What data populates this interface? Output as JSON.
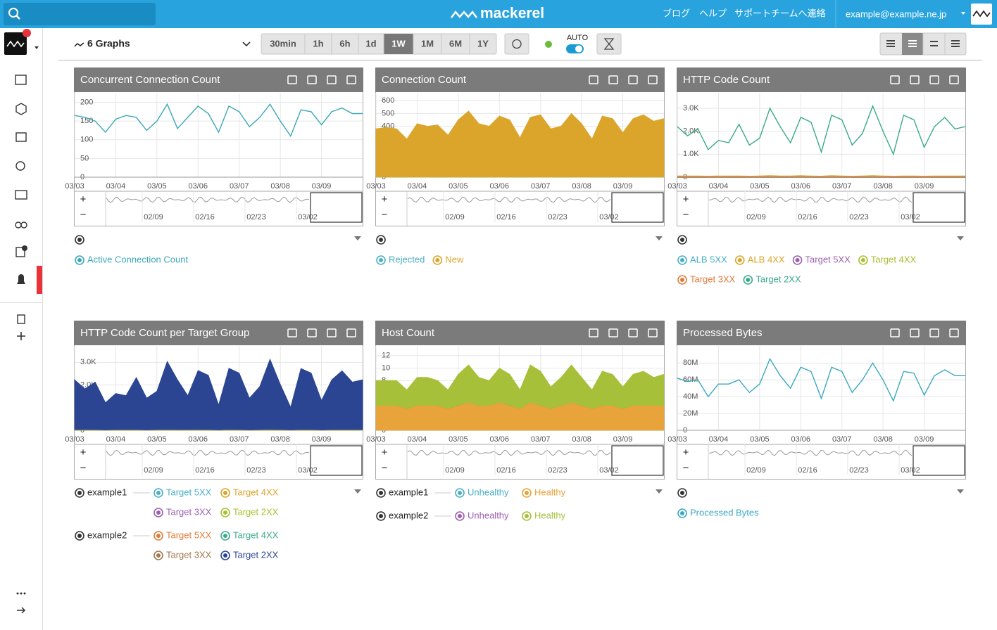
{
  "header": {
    "logo": "mackerel",
    "nav": [
      "ブログ",
      "ヘルプ",
      "サポートチームへ連絡"
    ],
    "user": "example@example.ne.jp"
  },
  "toolbar": {
    "title": "6 Graphs",
    "ranges": [
      {
        "label": "30min"
      },
      {
        "label": "1h"
      },
      {
        "label": "6h"
      },
      {
        "label": "1d"
      },
      {
        "label": "1W",
        "active": true
      },
      {
        "label": "1M"
      },
      {
        "label": "6M"
      },
      {
        "label": "1Y"
      }
    ],
    "auto": "AUTO"
  },
  "overview": {
    "zoom": [
      "+",
      "−"
    ],
    "ticks": [
      "02/09",
      "02/16",
      "02/23",
      "03/02"
    ]
  },
  "chart_data": [
    {
      "type": "line",
      "title": "Concurrent Connection Count",
      "ylim": [
        0,
        218
      ],
      "yticks": [
        0,
        50,
        100,
        150,
        200
      ],
      "grid": true,
      "xticks": [
        "03/03",
        "03/04",
        "03/05",
        "03/06",
        "03/07",
        "03/08",
        "03/09"
      ],
      "series": [
        {
          "name": "Active Connection Count",
          "color": "#3aa8b8",
          "values": [
            165,
            160,
            150,
            120,
            155,
            165,
            160,
            125,
            150,
            195,
            130,
            160,
            190,
            170,
            120,
            190,
            175,
            135,
            160,
            195,
            150,
            110,
            180,
            175,
            140,
            175,
            185,
            170,
            170
          ]
        }
      ]
    },
    {
      "type": "area",
      "stacked": true,
      "title": "Connection Count",
      "ylim": [
        0,
        640
      ],
      "yticks": [
        0,
        100,
        200,
        300,
        400,
        500,
        600
      ],
      "grid": true,
      "xticks": [
        "03/03",
        "03/04",
        "03/05",
        "03/06",
        "03/07",
        "03/08",
        "03/09"
      ],
      "series": [
        {
          "name": "Rejected",
          "color": "#4aaec6",
          "values": [
            0,
            0,
            0,
            0,
            0,
            0,
            0,
            0,
            0,
            0,
            0,
            0,
            0,
            0,
            0,
            0,
            0,
            0,
            0,
            0,
            0,
            0,
            0,
            0,
            0,
            0,
            0,
            0,
            0
          ]
        },
        {
          "name": "New",
          "color": "#dba52b",
          "values": [
            380,
            390,
            380,
            300,
            420,
            400,
            410,
            330,
            450,
            520,
            420,
            400,
            480,
            450,
            310,
            470,
            490,
            380,
            400,
            500,
            420,
            300,
            480,
            460,
            350,
            460,
            490,
            440,
            460
          ]
        }
      ]
    },
    {
      "type": "line",
      "title": "HTTP Code Count",
      "ylim": [
        0,
        3550
      ],
      "yticks": [
        0,
        {
          "value": 1000,
          "label": "1.0K"
        },
        {
          "value": 2000,
          "label": "2.0K"
        },
        {
          "value": 3000,
          "label": "3.0K"
        }
      ],
      "grid": true,
      "xticks": [
        "03/03",
        "03/04",
        "03/05",
        "03/06",
        "03/07",
        "03/08",
        "03/09"
      ],
      "series": [
        {
          "name": "ALB 5XX",
          "color": "#4aaec6",
          "values": [
            0,
            0,
            0,
            0,
            0,
            0,
            0,
            0,
            0,
            0,
            0,
            0,
            0,
            0,
            0,
            0,
            0,
            0,
            0,
            0,
            0,
            0,
            0,
            0,
            0,
            0,
            0,
            0,
            0
          ]
        },
        {
          "name": "ALB 4XX",
          "color": "#dba52b",
          "values": [
            50,
            50,
            50,
            40,
            50,
            50,
            50,
            40,
            50,
            60,
            50,
            50,
            60,
            50,
            40,
            60,
            50,
            40,
            50,
            60,
            50,
            40,
            50,
            50,
            40,
            50,
            50,
            50,
            50
          ]
        },
        {
          "name": "Target 5XX",
          "color": "#9b5fb0",
          "values": [
            0,
            0,
            0,
            0,
            0,
            0,
            0,
            0,
            0,
            0,
            0,
            0,
            0,
            0,
            0,
            0,
            0,
            0,
            0,
            0,
            0,
            0,
            0,
            0,
            0,
            0,
            0,
            0,
            0
          ]
        },
        {
          "name": "Target 4XX",
          "color": "#a8c030",
          "values": [
            30,
            30,
            30,
            20,
            30,
            30,
            30,
            20,
            30,
            40,
            30,
            30,
            40,
            30,
            20,
            40,
            30,
            20,
            30,
            40,
            30,
            20,
            30,
            30,
            20,
            30,
            30,
            30,
            30
          ]
        },
        {
          "name": "Target 3XX",
          "color": "#e07b3a",
          "values": [
            10,
            10,
            10,
            10,
            10,
            10,
            10,
            10,
            10,
            10,
            10,
            10,
            10,
            10,
            10,
            10,
            10,
            10,
            10,
            10,
            10,
            10,
            10,
            10,
            10,
            10,
            10,
            10,
            10
          ]
        },
        {
          "name": "Target 2XX",
          "color": "#3aaa8a",
          "values": [
            2200,
            1800,
            2100,
            1200,
            1600,
            1500,
            2300,
            1400,
            1700,
            3000,
            2200,
            1500,
            2600,
            2400,
            1100,
            2700,
            2500,
            1400,
            1900,
            3100,
            2000,
            1000,
            2700,
            2500,
            1300,
            2200,
            2600,
            2100,
            2200
          ]
        }
      ]
    },
    {
      "type": "area",
      "stacked": true,
      "title": "HTTP Code Count per Target Group",
      "ylim": [
        0,
        3600
      ],
      "yticks": [
        0,
        {
          "value": 1000,
          "label": "1.0K"
        },
        {
          "value": 2000,
          "label": "2.0K"
        },
        {
          "value": 3000,
          "label": "3.0K"
        }
      ],
      "grid": true,
      "xticks": [
        "03/03",
        "03/04",
        "03/05",
        "03/06",
        "03/07",
        "03/08",
        "03/09"
      ],
      "series": [
        {
          "group": "example1",
          "name": "Target 5XX",
          "color": "#4aaec6",
          "values": [
            0,
            0,
            0,
            0,
            0,
            0,
            0,
            0,
            0,
            0,
            0,
            0,
            0,
            0,
            0,
            0,
            0,
            0,
            0,
            0,
            0,
            0,
            0,
            0,
            0,
            0,
            0,
            0,
            0
          ]
        },
        {
          "group": "example1",
          "name": "Target 4XX",
          "color": "#dba52b",
          "values": [
            0,
            0,
            0,
            0,
            0,
            0,
            0,
            0,
            0,
            0,
            0,
            0,
            0,
            0,
            0,
            0,
            0,
            0,
            0,
            0,
            0,
            0,
            0,
            0,
            0,
            0,
            0,
            0,
            0
          ]
        },
        {
          "group": "example1",
          "name": "Target 3XX",
          "color": "#9b5fb0",
          "values": [
            0,
            0,
            0,
            0,
            0,
            0,
            0,
            0,
            0,
            0,
            0,
            0,
            0,
            0,
            0,
            0,
            0,
            0,
            0,
            0,
            0,
            0,
            0,
            0,
            0,
            0,
            0,
            0,
            0
          ]
        },
        {
          "group": "example1",
          "name": "Target 2XX",
          "color": "#a8c030",
          "values": [
            30,
            30,
            30,
            20,
            30,
            30,
            30,
            20,
            30,
            40,
            30,
            30,
            40,
            30,
            20,
            40,
            30,
            20,
            30,
            40,
            30,
            20,
            30,
            30,
            20,
            30,
            30,
            30,
            30
          ]
        },
        {
          "group": "example2",
          "name": "Target 5XX",
          "color": "#e07b3a",
          "values": [
            0,
            0,
            0,
            0,
            0,
            0,
            0,
            0,
            0,
            0,
            0,
            0,
            0,
            0,
            0,
            0,
            0,
            0,
            0,
            0,
            0,
            0,
            0,
            0,
            0,
            0,
            0,
            0,
            0
          ]
        },
        {
          "group": "example2",
          "name": "Target 4XX",
          "color": "#3aaa8a",
          "values": [
            0,
            0,
            0,
            0,
            0,
            0,
            0,
            0,
            0,
            0,
            0,
            0,
            0,
            0,
            0,
            0,
            0,
            0,
            0,
            0,
            0,
            0,
            0,
            0,
            0,
            0,
            0,
            0,
            0
          ]
        },
        {
          "group": "example2",
          "name": "Target 3XX",
          "color": "#a07850",
          "values": [
            0,
            0,
            0,
            0,
            0,
            0,
            0,
            0,
            0,
            0,
            0,
            0,
            0,
            0,
            0,
            0,
            0,
            0,
            0,
            0,
            0,
            0,
            0,
            0,
            0,
            0,
            0,
            0,
            0
          ]
        },
        {
          "group": "example2",
          "name": "Target 2XX",
          "color": "#2b4592",
          "values": [
            2200,
            1800,
            2100,
            1200,
            1600,
            1500,
            2300,
            1400,
            1700,
            3000,
            2200,
            1500,
            2600,
            2400,
            1100,
            2700,
            2500,
            1400,
            1900,
            3100,
            2000,
            1000,
            2700,
            2500,
            1300,
            2200,
            2600,
            2100,
            2200
          ]
        }
      ]
    },
    {
      "type": "area",
      "stacked": true,
      "title": "Host Count",
      "ylim": [
        0,
        13.1
      ],
      "yticks": [
        0,
        2,
        4,
        6,
        8,
        10,
        12
      ],
      "grid": true,
      "xticks": [
        "03/03",
        "03/04",
        "03/05",
        "03/06",
        "03/07",
        "03/08",
        "03/09"
      ],
      "series": [
        {
          "group": "example1",
          "name": "Unhealthy",
          "color": "#4aaec6",
          "values": [
            0,
            0,
            0,
            0,
            0,
            0,
            0,
            0,
            0,
            0,
            0,
            0,
            0,
            0,
            0,
            0,
            0,
            0,
            0,
            0,
            0,
            0,
            0,
            0,
            0,
            0,
            0,
            0,
            0
          ]
        },
        {
          "group": "example1",
          "name": "Healthy",
          "color": "#e8a33a",
          "values": [
            4,
            4,
            4,
            3.5,
            4,
            4,
            4,
            3.5,
            4,
            4.5,
            4,
            4,
            4.5,
            4,
            3.5,
            4.5,
            4,
            3.5,
            4,
            4.5,
            4,
            3.5,
            4,
            4,
            3.5,
            4,
            4,
            4,
            4
          ]
        },
        {
          "group": "example2",
          "name": "Unhealthy",
          "color": "#9b5fb0",
          "values": [
            0,
            0,
            0,
            0,
            0,
            0,
            0,
            0,
            0,
            0,
            0,
            0,
            0,
            0,
            0,
            0,
            0,
            0,
            0,
            0,
            0,
            0,
            0,
            0,
            0,
            0,
            0,
            0,
            0
          ]
        },
        {
          "group": "example2",
          "name": "Healthy",
          "color": "#a6c03a",
          "values": [
            4,
            4,
            4,
            3,
            4.5,
            4.5,
            4,
            3,
            5,
            6,
            4.5,
            4,
            5.5,
            5,
            3,
            6,
            5.5,
            3.5,
            4.5,
            6,
            4.5,
            3,
            5.5,
            5,
            3.5,
            5,
            5.5,
            4.5,
            5
          ]
        }
      ]
    },
    {
      "type": "line",
      "title": "Processed Bytes",
      "ylim": [
        0,
        97000000
      ],
      "yticks": [
        0,
        {
          "value": 20000000,
          "label": "20M"
        },
        {
          "value": 40000000,
          "label": "40M"
        },
        {
          "value": 60000000,
          "label": "60M"
        },
        {
          "value": 80000000,
          "label": "80M"
        }
      ],
      "grid": true,
      "xticks": [
        "03/03",
        "03/04",
        "03/05",
        "03/06",
        "03/07",
        "03/08",
        "03/09"
      ],
      "series": [
        {
          "name": "Processed Bytes",
          "color": "#3aa8c0",
          "values": [
            62000000,
            58000000,
            60000000,
            40000000,
            55000000,
            55000000,
            60000000,
            45000000,
            55000000,
            85000000,
            65000000,
            50000000,
            75000000,
            70000000,
            38000000,
            75000000,
            70000000,
            45000000,
            60000000,
            80000000,
            60000000,
            35000000,
            70000000,
            68000000,
            42000000,
            65000000,
            72000000,
            65000000,
            65000000
          ]
        }
      ]
    }
  ]
}
